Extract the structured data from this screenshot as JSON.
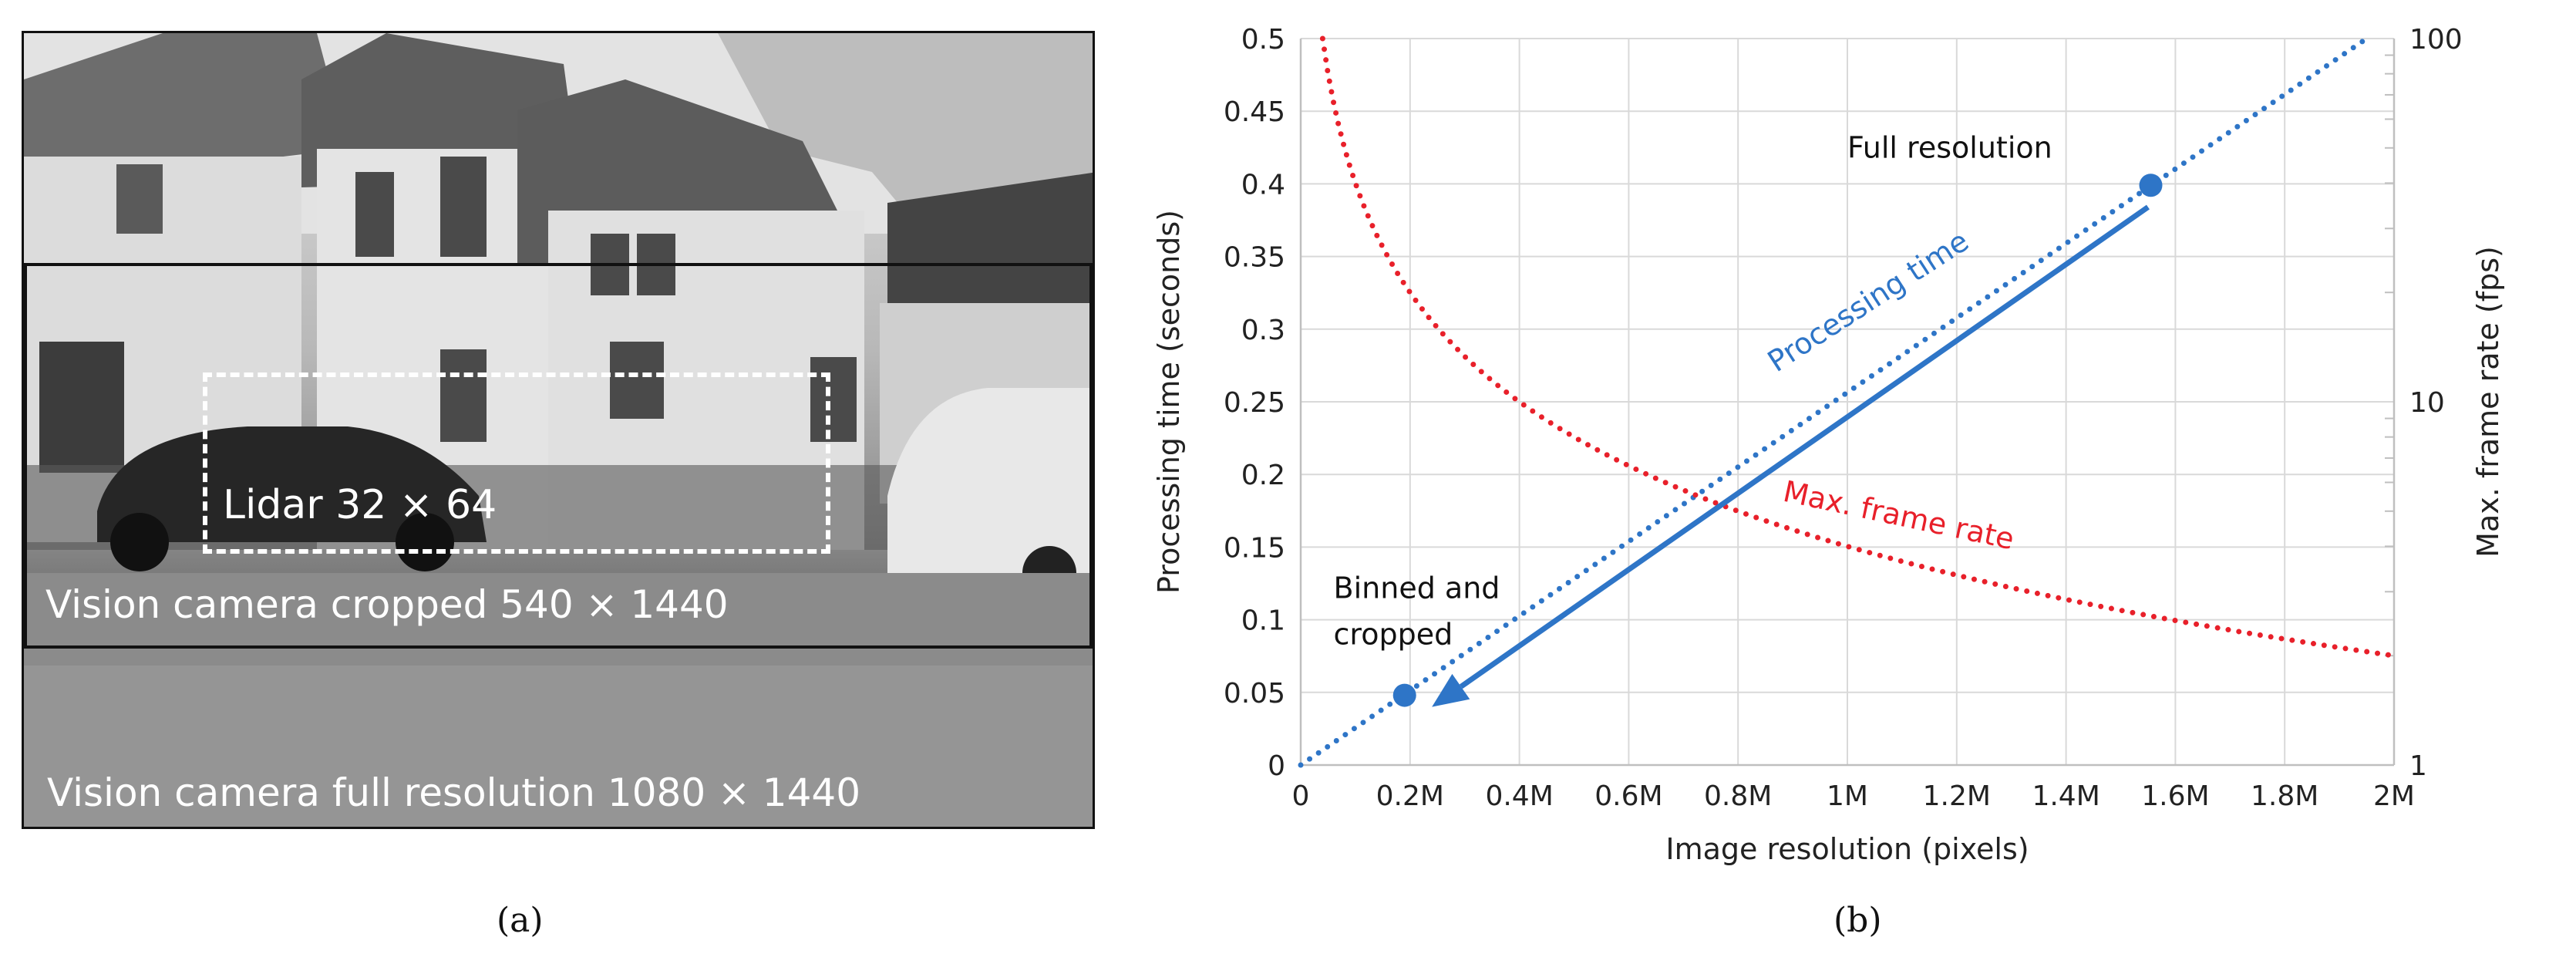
{
  "panel_a": {
    "lidar_label": "Lidar 32 × 64",
    "cropped_label": "Vision camera cropped 540 × 1440",
    "full_label": "Vision camera full resolution 1080 × 1440",
    "caption": "(a)"
  },
  "panel_b": {
    "caption": "(b)"
  },
  "chart_data": {
    "type": "line",
    "xlabel": "Image resolution (pixels)",
    "ylabel": "Processing time (seconds)",
    "y2label": "Max. frame rate (fps)",
    "xlim": [
      0,
      2000000
    ],
    "ylim": [
      0,
      0.5
    ],
    "y2lim": [
      1,
      100
    ],
    "y2_scale": "log",
    "grid": true,
    "x_ticks": [
      {
        "value": 0,
        "label": "0"
      },
      {
        "value": 200000,
        "label": "0.2M"
      },
      {
        "value": 400000,
        "label": "0.4M"
      },
      {
        "value": 600000,
        "label": "0.6M"
      },
      {
        "value": 800000,
        "label": "0.8M"
      },
      {
        "value": 1000000,
        "label": "1M"
      },
      {
        "value": 1200000,
        "label": "1.2M"
      },
      {
        "value": 1400000,
        "label": "1.4M"
      },
      {
        "value": 1600000,
        "label": "1.6M"
      },
      {
        "value": 1800000,
        "label": "1.8M"
      },
      {
        "value": 2000000,
        "label": "2M"
      }
    ],
    "y_ticks": [
      {
        "value": 0,
        "label": "0"
      },
      {
        "value": 0.05,
        "label": "0.05"
      },
      {
        "value": 0.1,
        "label": "0.1"
      },
      {
        "value": 0.15,
        "label": "0.15"
      },
      {
        "value": 0.2,
        "label": "0.2"
      },
      {
        "value": 0.25,
        "label": "0.25"
      },
      {
        "value": 0.3,
        "label": "0.3"
      },
      {
        "value": 0.35,
        "label": "0.35"
      },
      {
        "value": 0.4,
        "label": "0.4"
      },
      {
        "value": 0.45,
        "label": "0.45"
      },
      {
        "value": 0.5,
        "label": "0.5"
      }
    ],
    "y2_ticks": [
      {
        "value": 1,
        "label": "1"
      },
      {
        "value": 10,
        "label": "10"
      },
      {
        "value": 100,
        "label": "100"
      }
    ],
    "series": [
      {
        "name": "Processing time",
        "axis": "left",
        "style": "dotted",
        "color": "#2e75c7",
        "x": [
          0,
          1950000
        ],
        "y": [
          0,
          0.5
        ]
      },
      {
        "name": "Max. frame rate",
        "axis": "right",
        "style": "dotted",
        "color": "#e8202a",
        "x": [
          50000,
          100000,
          200000,
          300000,
          400000,
          600000,
          800000,
          1000000,
          1200000,
          1400000,
          1600000,
          1800000,
          2000000
        ],
        "y": [
          100,
          40,
          20,
          13.3,
          10,
          6.7,
          5,
          4,
          3.3,
          2.9,
          2.5,
          2.2,
          2
        ]
      }
    ],
    "points": [
      {
        "label": "Full resolution",
        "x": 1555000,
        "y": 0.399
      },
      {
        "label": "Binned and cropped",
        "x": 190000,
        "y": 0.048
      }
    ],
    "arrow": {
      "from": {
        "x": 1550000,
        "y": 0.384
      },
      "to": {
        "x": 240000,
        "y": 0.04
      },
      "color": "#2e75c7"
    },
    "annotations": {
      "full_resolution": "Full resolution",
      "binned_line1": "Binned and",
      "binned_line2": "cropped",
      "processing_time": "Processing time",
      "max_frame_rate": "Max. frame rate"
    },
    "colors": {
      "blue": "#2e75c7",
      "red": "#e8202a",
      "grid": "#d9d9d9"
    }
  }
}
